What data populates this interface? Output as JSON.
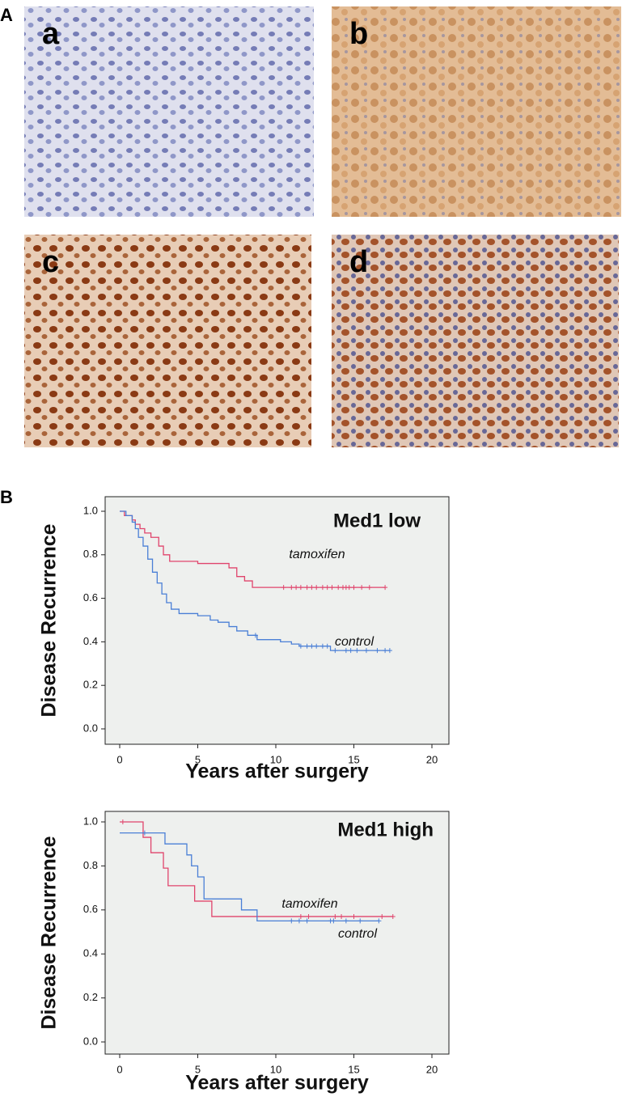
{
  "panel_a": {
    "label": "A",
    "images": [
      "a",
      "b",
      "c",
      "d"
    ]
  },
  "panel_b": {
    "label": "B"
  },
  "chart_data": [
    {
      "type": "line",
      "step": true,
      "title": "Med1 low",
      "xlabel": "Years after surgery",
      "ylabel": "Disease Recurrence",
      "xlim": [
        0,
        20
      ],
      "ylim": [
        0,
        1
      ],
      "xticks": [
        0,
        5,
        10,
        15,
        20
      ],
      "yticks": [
        {
          "value": 0,
          "label": "0.0"
        },
        0.2,
        0.4,
        0.6,
        0.8,
        {
          "value": 1,
          "label": "1.0"
        }
      ],
      "series": [
        {
          "name": "tamoxifen",
          "color": "#e0446c",
          "x": [
            0,
            0.3,
            0.8,
            1.0,
            1.3,
            1.6,
            2.0,
            2.5,
            2.8,
            3.2,
            5,
            7,
            7.5,
            8,
            8.5,
            17
          ],
          "values": [
            1.0,
            0.98,
            0.96,
            0.94,
            0.92,
            0.9,
            0.88,
            0.84,
            0.8,
            0.77,
            0.76,
            0.74,
            0.7,
            0.68,
            0.65,
            0.65
          ],
          "censored": [
            10.5,
            11,
            11.3,
            11.6,
            12,
            12.3,
            12.6,
            13,
            13.3,
            13.6,
            14,
            14.3,
            14.5,
            14.7,
            15,
            15.5,
            16,
            17
          ]
        },
        {
          "name": "control",
          "color": "#4a7fd6",
          "x": [
            0,
            0.4,
            0.8,
            1.0,
            1.2,
            1.5,
            1.8,
            2.1,
            2.4,
            2.7,
            3.0,
            3.3,
            3.8,
            5,
            5.8,
            6.3,
            7,
            7.5,
            8.2,
            8.8,
            10.3,
            11,
            11.5,
            13.5,
            17.3
          ],
          "values": [
            1.0,
            0.98,
            0.95,
            0.92,
            0.88,
            0.84,
            0.78,
            0.72,
            0.67,
            0.62,
            0.58,
            0.55,
            0.53,
            0.52,
            0.5,
            0.49,
            0.47,
            0.45,
            0.43,
            0.41,
            0.4,
            0.39,
            0.38,
            0.36,
            0.36
          ],
          "censored": [
            8.7,
            11.6,
            12,
            12.3,
            12.6,
            13,
            13.3,
            13.8,
            14.5,
            14.8,
            15.2,
            15.8,
            16.5,
            17,
            17.3
          ]
        }
      ]
    },
    {
      "type": "line",
      "step": true,
      "title": "Med1 high",
      "xlabel": "Years after surgery",
      "ylabel": "Disease Recurrence",
      "xlim": [
        0,
        20
      ],
      "ylim": [
        0,
        1
      ],
      "xticks": [
        0,
        5,
        10,
        15,
        20
      ],
      "yticks": [
        {
          "value": 0,
          "label": "0.0"
        },
        0.2,
        0.4,
        0.6,
        0.8,
        {
          "value": 1,
          "label": "1.0"
        }
      ],
      "series": [
        {
          "name": "tamoxifen",
          "color": "#e0446c",
          "x": [
            0,
            1.5,
            2,
            2.8,
            3.1,
            4.8,
            5.9,
            17.5
          ],
          "values": [
            1.0,
            0.93,
            0.86,
            0.79,
            0.71,
            0.64,
            0.57,
            0.57
          ],
          "censored": [
            0.2,
            11.6,
            12.1,
            13.8,
            14.2,
            15,
            16.8,
            17.5
          ]
        },
        {
          "name": "control",
          "color": "#4a7fd6",
          "x": [
            0,
            1.7,
            2.9,
            4.3,
            4.6,
            5,
            5.4,
            7.8,
            8.8,
            16.6
          ],
          "values": [
            0.95,
            0.95,
            0.9,
            0.85,
            0.8,
            0.75,
            0.65,
            0.6,
            0.55,
            0.55
          ],
          "censored": [
            1.6,
            11.0,
            11.5,
            12,
            13.5,
            13.7,
            14.5,
            15.4,
            16.6
          ]
        }
      ]
    }
  ]
}
